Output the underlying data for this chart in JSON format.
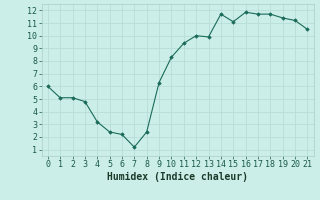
{
  "x": [
    0,
    1,
    2,
    3,
    4,
    5,
    6,
    7,
    8,
    9,
    10,
    11,
    12,
    13,
    14,
    15,
    16,
    17,
    18,
    19,
    20,
    21
  ],
  "y": [
    6.0,
    5.1,
    5.1,
    4.8,
    3.2,
    2.4,
    2.2,
    1.2,
    2.4,
    6.3,
    8.3,
    9.4,
    10.0,
    9.9,
    11.7,
    11.1,
    11.85,
    11.7,
    11.7,
    11.4,
    11.2,
    10.5
  ],
  "line_color": "#1a6b5a",
  "marker": "D",
  "marker_size": 1.8,
  "bg_color": "#cceee8",
  "grid_color": "#b8ddd8",
  "xlabel": "Humidex (Indice chaleur)",
  "xlim": [
    -0.5,
    21.5
  ],
  "ylim": [
    0.5,
    12.5
  ],
  "xticks": [
    0,
    1,
    2,
    3,
    4,
    5,
    6,
    7,
    8,
    9,
    10,
    11,
    12,
    13,
    14,
    15,
    16,
    17,
    18,
    19,
    20,
    21
  ],
  "yticks": [
    1,
    2,
    3,
    4,
    5,
    6,
    7,
    8,
    9,
    10,
    11,
    12
  ],
  "tick_fontsize": 6.0,
  "xlabel_fontsize": 7.0
}
